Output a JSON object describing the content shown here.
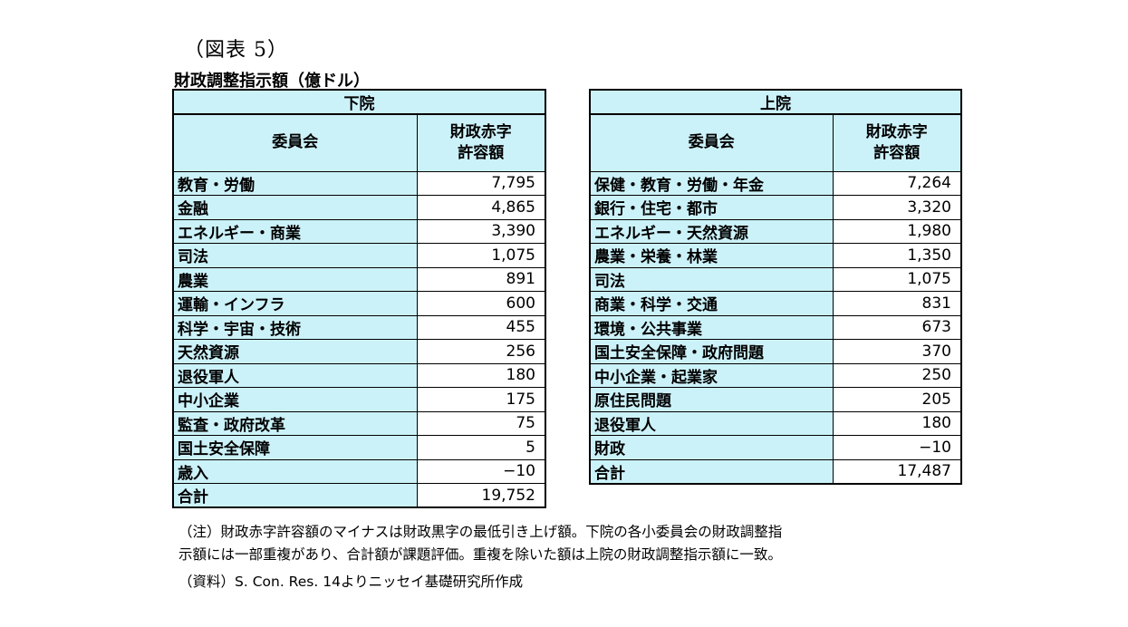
{
  "figure_label": "（図表 5）",
  "title": "財政調整指示額（億ドル）",
  "house": {
    "chamber": "下院",
    "col_committee": "委員会",
    "col_amount_line1": "財政赤字",
    "col_amount_line2": "許容額",
    "rows": [
      {
        "name": "教育・労働",
        "value": "7,795"
      },
      {
        "name": "金融",
        "value": "4,865"
      },
      {
        "name": "エネルギー・商業",
        "value": "3,390"
      },
      {
        "name": "司法",
        "value": "1,075"
      },
      {
        "name": "農業",
        "value": "891"
      },
      {
        "name": "運輸・インフラ",
        "value": "600"
      },
      {
        "name": "科学・宇宙・技術",
        "value": "455"
      },
      {
        "name": "天然資源",
        "value": "256"
      },
      {
        "name": "退役軍人",
        "value": "180"
      },
      {
        "name": "中小企業",
        "value": "175"
      },
      {
        "name": "監査・政府改革",
        "value": "75"
      },
      {
        "name": "国土安全保障",
        "value": "5"
      },
      {
        "name": "歳入",
        "value": "−10"
      },
      {
        "name": "合計",
        "value": "19,752"
      }
    ]
  },
  "senate": {
    "chamber": "上院",
    "col_committee": "委員会",
    "col_amount_line1": "財政赤字",
    "col_amount_line2": "許容額",
    "rows": [
      {
        "name": "保健・教育・労働・年金",
        "value": "7,264"
      },
      {
        "name": "銀行・住宅・都市",
        "value": "3,320"
      },
      {
        "name": "エネルギー・天然資源",
        "value": "1,980"
      },
      {
        "name": "農業・栄養・林業",
        "value": "1,350"
      },
      {
        "name": "司法",
        "value": "1,075"
      },
      {
        "name": "商業・科学・交通",
        "value": "831"
      },
      {
        "name": "環境・公共事業",
        "value": "673"
      },
      {
        "name": "国土安全保障・政府問題",
        "value": "370"
      },
      {
        "name": "中小企業・起業家",
        "value": "250"
      },
      {
        "name": "原住民問題",
        "value": "205"
      },
      {
        "name": "退役軍人",
        "value": "180"
      },
      {
        "name": "財政",
        "value": "−10"
      },
      {
        "name": "合計",
        "value": "17,487"
      }
    ]
  },
  "note_line1": "（注）財政赤字許容額のマイナスは財政黒字の最低引き上げ額。下院の各小委員会の財政調整指",
  "note_line2": "示額には一部重複があり、合計額が課題評価。重複を除いた額は上院の財政調整指示額に一致。",
  "source": "（資料）S. Con. Res. 14よりニッセイ基礎研究所作成"
}
